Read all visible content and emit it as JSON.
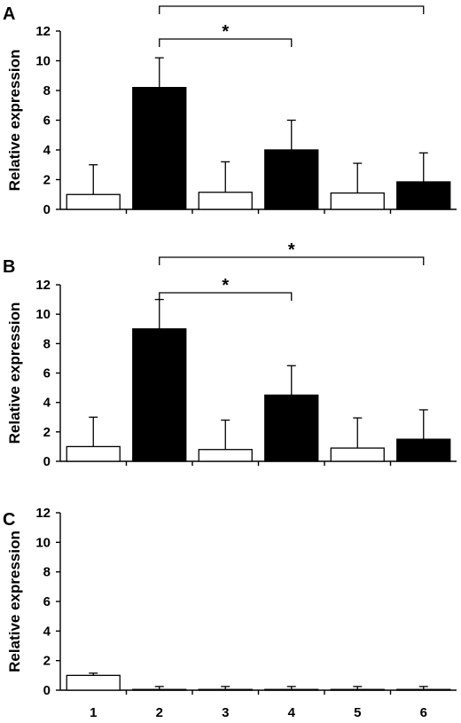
{
  "chart_data": [
    {
      "type": "bar",
      "panel_label": "A",
      "categories": [
        "1",
        "2",
        "3",
        "4",
        "5",
        "6"
      ],
      "values": [
        1.0,
        8.2,
        1.15,
        4.0,
        1.1,
        1.85
      ],
      "errors": [
        2.0,
        2.0,
        2.05,
        2.0,
        2.0,
        1.95
      ],
      "fills": [
        "#ffffff",
        "#000000",
        "#ffffff",
        "#000000",
        "#ffffff",
        "#000000"
      ],
      "ylabel": "Relative expression",
      "xlabel": "",
      "ylim": [
        0,
        12
      ],
      "yticks": [
        "0",
        "2",
        "4",
        "6",
        "8",
        "10",
        "12"
      ],
      "grid": false,
      "significance": [
        {
          "from": "2",
          "to": "4",
          "label": "*"
        },
        {
          "from": "2",
          "to": "6",
          "label": "*"
        }
      ]
    },
    {
      "type": "bar",
      "panel_label": "B",
      "categories": [
        "1",
        "2",
        "3",
        "4",
        "5",
        "6"
      ],
      "values": [
        1.0,
        9.0,
        0.8,
        4.5,
        0.9,
        1.5
      ],
      "errors": [
        2.0,
        2.0,
        2.0,
        2.0,
        2.05,
        2.0
      ],
      "fills": [
        "#ffffff",
        "#000000",
        "#ffffff",
        "#000000",
        "#ffffff",
        "#000000"
      ],
      "ylabel": "Relative expression",
      "xlabel": "",
      "ylim": [
        0,
        12
      ],
      "yticks": [
        "0",
        "2",
        "4",
        "6",
        "8",
        "10",
        "12"
      ],
      "grid": false,
      "significance": [
        {
          "from": "2",
          "to": "4",
          "label": "*"
        },
        {
          "from": "2",
          "to": "6",
          "label": "*"
        }
      ]
    },
    {
      "type": "bar",
      "panel_label": "C",
      "categories": [
        "1",
        "2",
        "3",
        "4",
        "5",
        "6"
      ],
      "values": [
        1.0,
        0.05,
        0.05,
        0.05,
        0.05,
        0.05
      ],
      "errors": [
        0.15,
        0.2,
        0.2,
        0.2,
        0.2,
        0.2
      ],
      "fills": [
        "#ffffff",
        "#000000",
        "#ffffff",
        "#000000",
        "#ffffff",
        "#000000"
      ],
      "ylabel": "Relative expression",
      "xlabel": "",
      "ylim": [
        0,
        12
      ],
      "yticks": [
        "0",
        "2",
        "4",
        "6",
        "8",
        "10",
        "12"
      ],
      "grid": false,
      "significance": []
    }
  ]
}
